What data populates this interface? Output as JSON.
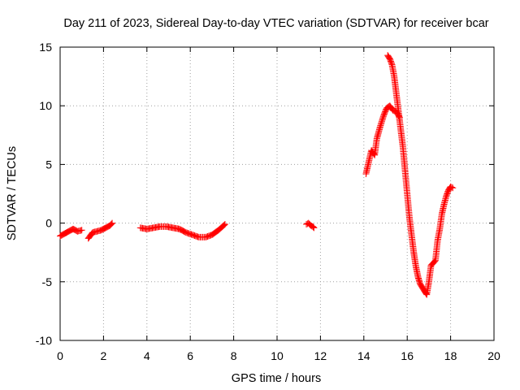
{
  "chart_data": {
    "type": "scatter",
    "title": "Day 211 of 2023, Sidereal Day-to-day VTEC variation (SDTVAR) for receiver bcar",
    "xlabel": "GPS time / hours",
    "ylabel": "SDTVAR / TECUs",
    "xlim": [
      0,
      20
    ],
    "ylim": [
      -10,
      15
    ],
    "x_ticks": [
      0,
      2,
      4,
      6,
      8,
      10,
      12,
      14,
      16,
      18,
      20
    ],
    "y_ticks": [
      -10,
      -5,
      0,
      5,
      10,
      15
    ],
    "x_tick_labels": [
      "0",
      "2",
      "4",
      "6",
      "8",
      "10",
      "12",
      "14",
      "16",
      "18",
      "20"
    ],
    "y_tick_labels": [
      "-10",
      "-5",
      "0",
      "5",
      "10",
      "15"
    ],
    "grid": true,
    "marker": "+",
    "color": "#ff0000",
    "segments": [
      {
        "name": "segment-1",
        "x": [
          0.0,
          0.2,
          0.4,
          0.6,
          0.8,
          1.0
        ],
        "y": [
          -1.1,
          -0.9,
          -0.7,
          -0.5,
          -0.7,
          -0.6
        ]
      },
      {
        "name": "segment-2",
        "x": [
          1.3,
          1.5,
          1.7,
          1.9,
          2.1,
          2.3,
          2.4
        ],
        "y": [
          -1.3,
          -0.8,
          -0.7,
          -0.6,
          -0.4,
          -0.2,
          0.0
        ]
      },
      {
        "name": "segment-3",
        "x": [
          3.7,
          4.0,
          4.3,
          4.6,
          4.9,
          5.2,
          5.5,
          5.8,
          6.1,
          6.4,
          6.7,
          7.0,
          7.3,
          7.6
        ],
        "y": [
          -0.4,
          -0.5,
          -0.4,
          -0.3,
          -0.3,
          -0.4,
          -0.5,
          -0.8,
          -1.0,
          -1.2,
          -1.2,
          -1.0,
          -0.6,
          -0.1
        ]
      },
      {
        "name": "segment-4",
        "x": [
          11.35,
          11.45,
          11.55,
          11.65,
          11.7
        ],
        "y": [
          -0.1,
          0.0,
          -0.2,
          -0.3,
          -0.4
        ]
      },
      {
        "name": "segment-5-early",
        "x": [
          14.1,
          14.2,
          14.35,
          14.5,
          14.6,
          14.75,
          14.9,
          15.05,
          15.2,
          15.35,
          15.5,
          15.65
        ],
        "y": [
          4.2,
          5.0,
          6.2,
          5.8,
          7.2,
          8.2,
          9.1,
          9.8,
          10.0,
          9.6,
          9.5,
          9.0
        ]
      },
      {
        "name": "segment-5-late",
        "x": [
          15.1,
          15.2,
          15.3,
          15.4,
          15.5,
          15.6,
          15.7,
          15.8,
          15.9,
          16.0,
          16.1,
          16.2,
          16.3,
          16.4,
          16.5,
          16.6,
          16.7,
          16.8,
          16.9,
          17.0,
          17.1,
          17.2,
          17.3,
          17.4,
          17.5,
          17.6,
          17.7,
          17.8,
          17.9,
          18.0,
          18.1
        ],
        "y": [
          14.3,
          14.0,
          13.5,
          12.5,
          11.0,
          9.5,
          8.0,
          6.5,
          4.5,
          2.5,
          0.5,
          -1.0,
          -2.5,
          -3.7,
          -4.6,
          -5.2,
          -5.5,
          -5.8,
          -6.1,
          -5.0,
          -3.6,
          -3.4,
          -3.2,
          -1.5,
          -0.5,
          0.8,
          1.6,
          2.3,
          2.8,
          3.1,
          3.0
        ]
      }
    ]
  }
}
